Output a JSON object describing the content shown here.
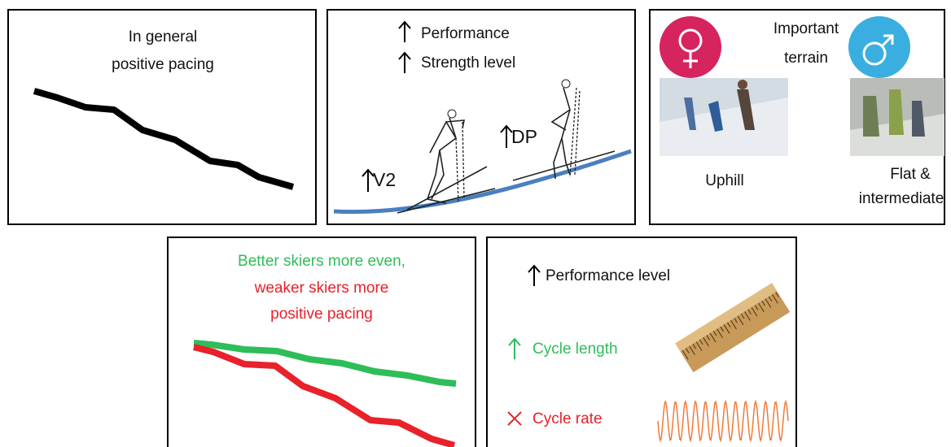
{
  "panels": [
    {
      "lines": [
        "In general",
        "positive pacing"
      ]
    },
    {
      "labels": [
        "Performance",
        "Strength level"
      ],
      "technique_labels": [
        "V2",
        "DP"
      ]
    },
    {
      "title_lines": [
        "Important",
        "terrain"
      ],
      "uphill": "Uphill",
      "flat_lines": [
        "Flat &",
        "intermediate"
      ]
    },
    {
      "lines": [
        "Better skiers more even,",
        "weaker skiers more",
        "positive pacing"
      ]
    },
    {
      "items": [
        "Performance level",
        "Cycle length",
        "Cycle rate"
      ]
    }
  ]
}
